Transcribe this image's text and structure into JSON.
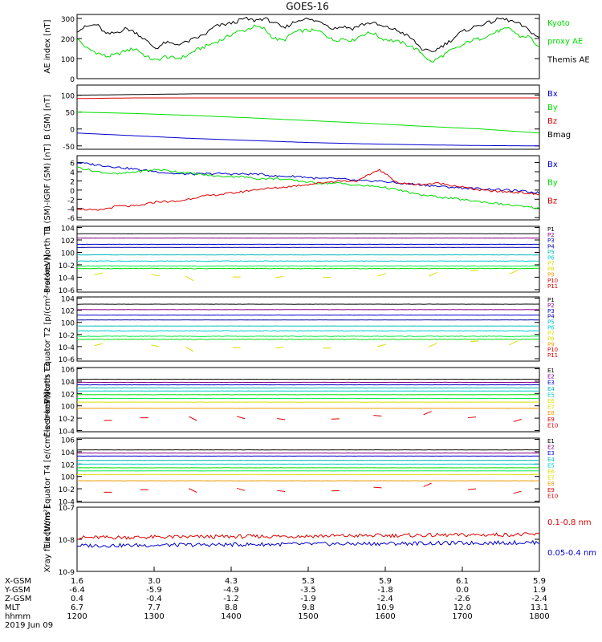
{
  "title": "GOES-16",
  "colors": {
    "black": "#000000",
    "blue": "#0000cc",
    "green": "#00dd00",
    "red": "#dd0000",
    "purple": "#880088",
    "cyan": "#00cccc",
    "yellow": "#dddd00",
    "orange": "#ee9900",
    "navy": "#0000aa",
    "teal": "#00bbbb",
    "lime": "#00ee44"
  },
  "chart_data": [
    {
      "type": "line",
      "id": "ae",
      "ylabel": "AE index [nT]",
      "ylim": [
        0,
        320
      ],
      "ticks": [
        {
          "v": 0,
          "t": "0"
        },
        {
          "v": 100,
          "t": "100"
        },
        {
          "v": 200,
          "t": "200"
        },
        {
          "v": 300,
          "t": "300"
        }
      ],
      "series": [
        {
          "name": "Kyoto proxy AE",
          "color": "green",
          "values": [
            200,
            150,
            130,
            110,
            120,
            140,
            150,
            110,
            90,
            110,
            100,
            110,
            140,
            160,
            180,
            200,
            230,
            240,
            260,
            250,
            200,
            190,
            230,
            240,
            240,
            230,
            190,
            200,
            190,
            220,
            230,
            200,
            190,
            180,
            160,
            130,
            80,
            110,
            140,
            160,
            190,
            200,
            220,
            240,
            250,
            210,
            210,
            150
          ]
        },
        {
          "name": "Themis AE",
          "color": "black",
          "values": [
            240,
            260,
            270,
            220,
            230,
            250,
            230,
            190,
            150,
            180,
            170,
            180,
            200,
            220,
            260,
            270,
            280,
            300,
            290,
            300,
            280,
            250,
            280,
            300,
            290,
            280,
            250,
            260,
            250,
            270,
            280,
            260,
            250,
            230,
            200,
            150,
            130,
            160,
            190,
            230,
            250,
            270,
            280,
            300,
            290,
            270,
            240,
            200
          ]
        }
      ],
      "legend": [
        {
          "text": "Kyoto",
          "color": "green"
        },
        {
          "text": "proxy AE",
          "color": "green"
        },
        {
          "text": "Themis AE",
          "color": "black"
        }
      ]
    },
    {
      "type": "line",
      "id": "bsm",
      "ylabel": "B (SM) [nT]",
      "ylim": [
        -60,
        130
      ],
      "ticks": [
        {
          "v": -50,
          "t": "-50"
        },
        {
          "v": 0,
          "t": "0"
        },
        {
          "v": 50,
          "t": "50"
        },
        {
          "v": 100,
          "t": "100"
        }
      ],
      "series": [
        {
          "name": "Bmag",
          "color": "black",
          "values": [
            100,
            102,
            104,
            104,
            104,
            104,
            104,
            104,
            104
          ]
        },
        {
          "name": "Bz",
          "color": "red",
          "values": [
            90,
            92,
            92,
            92,
            92,
            92,
            92,
            92,
            92
          ]
        },
        {
          "name": "By",
          "color": "green",
          "values": [
            50,
            46,
            40,
            33,
            25,
            17,
            8,
            0,
            -12
          ]
        },
        {
          "name": "Bx",
          "color": "blue",
          "values": [
            -12,
            -20,
            -28,
            -34,
            -40,
            -44,
            -47,
            -49,
            -50
          ]
        }
      ],
      "legend": [
        {
          "text": "Bx",
          "color": "blue"
        },
        {
          "text": "By",
          "color": "green"
        },
        {
          "text": "Bz",
          "color": "red"
        },
        {
          "text": "Bmag",
          "color": "black"
        }
      ]
    },
    {
      "type": "line",
      "id": "bres",
      "ylabel": "B (SM)-IGRF (SM) [nT]",
      "ylim": [
        -6.5,
        7.5
      ],
      "ticks": [
        {
          "v": -6,
          "t": "-6"
        },
        {
          "v": -4,
          "t": "-4"
        },
        {
          "v": -2,
          "t": "-2"
        },
        {
          "v": 0,
          "t": "0"
        },
        {
          "v": 2,
          "t": "2"
        },
        {
          "v": 4,
          "t": "4"
        },
        {
          "v": 6,
          "t": "6"
        }
      ],
      "series": [
        {
          "name": "Bx",
          "color": "blue",
          "values": [
            6,
            5.5,
            5,
            4.5,
            4,
            3.5,
            3.5,
            3.6,
            3.5,
            3.5,
            3,
            3,
            2.5,
            2.5,
            2,
            2,
            1.5,
            1.2,
            0.8,
            0.5,
            0.3,
            0.1,
            -0.2,
            -0.6
          ]
        },
        {
          "name": "By",
          "color": "green",
          "values": [
            5,
            4,
            3.5,
            4,
            4.5,
            4,
            3.5,
            3,
            3,
            2.5,
            2.5,
            2,
            1.5,
            1.5,
            1,
            0.8,
            0,
            -1,
            -1.5,
            -2,
            -2.5,
            -3,
            -3.5,
            -4
          ]
        },
        {
          "name": "Bz",
          "color": "red",
          "values": [
            -4,
            -4.5,
            -3.5,
            -3.5,
            -2.5,
            -2.5,
            -1.5,
            -1,
            -0.5,
            0.2,
            0.5,
            1,
            1.5,
            2,
            2,
            4.5,
            1.5,
            1.2,
            1.5,
            0.8,
            0,
            -0.3,
            -0.5,
            -1
          ]
        }
      ],
      "legend": [
        {
          "text": "Bx",
          "color": "blue"
        },
        {
          "text": "By",
          "color": "green"
        },
        {
          "text": "Bz",
          "color": "red"
        }
      ]
    },
    {
      "type": "line",
      "id": "pnorth",
      "log": true,
      "ylabel": "Protons North T1",
      "ylim": [
        -6.4,
        4.2
      ],
      "ticks": [
        {
          "v": -6,
          "t": "10-6"
        },
        {
          "v": -4,
          "t": "10-4"
        },
        {
          "v": -2,
          "t": "10-2"
        },
        {
          "v": 0,
          "t": "100"
        },
        {
          "v": 2,
          "t": "102"
        },
        {
          "v": 4,
          "t": "104"
        }
      ],
      "series": [
        {
          "name": "P1",
          "color": "black",
          "level": 3
        },
        {
          "name": "P2",
          "color": "purple",
          "level": 2.3
        },
        {
          "name": "P3",
          "color": "blue",
          "level": 1.3
        },
        {
          "name": "P4",
          "color": "navy",
          "level": 0.8
        },
        {
          "name": "P5",
          "color": "teal",
          "level": -0.4
        },
        {
          "name": "P6",
          "color": "cyan",
          "level": -1.4
        },
        {
          "name": "P7",
          "color": "lime",
          "level": -2.2
        },
        {
          "name": "P8",
          "color": "green",
          "level": -2.6
        },
        {
          "name": "P9",
          "color": "yellow",
          "level": -3.4,
          "sparse": true
        }
      ],
      "legend": [
        {
          "text": "P1",
          "color": "black"
        },
        {
          "text": "P2",
          "color": "purple"
        },
        {
          "text": "P3",
          "color": "blue"
        },
        {
          "text": "P4",
          "color": "navy"
        },
        {
          "text": "P5",
          "color": "teal"
        },
        {
          "text": "P6",
          "color": "cyan"
        },
        {
          "text": "P7",
          "color": "yellow"
        },
        {
          "text": "P8",
          "color": "yellow"
        },
        {
          "text": "P9",
          "color": "orange"
        },
        {
          "text": "P10",
          "color": "red"
        },
        {
          "text": "P11",
          "color": "red"
        }
      ]
    },
    {
      "type": "line",
      "id": "pequator",
      "log": true,
      "ylabel": "Protons Equator T2 [p/(cm²-s-sr-keV)]",
      "ylim": [
        -6.4,
        4.2
      ],
      "ticks": [
        {
          "v": -6,
          "t": "10-6"
        },
        {
          "v": -4,
          "t": "10-4"
        },
        {
          "v": -2,
          "t": "10-2"
        },
        {
          "v": 0,
          "t": "100"
        },
        {
          "v": 2,
          "t": "102"
        },
        {
          "v": 4,
          "t": "104"
        }
      ],
      "series": [
        {
          "name": "P1",
          "color": "black",
          "level": 3
        },
        {
          "name": "P2",
          "color": "purple",
          "level": 2.1
        },
        {
          "name": "P3",
          "color": "blue",
          "level": 1.2
        },
        {
          "name": "P4",
          "color": "navy",
          "level": 0.4
        },
        {
          "name": "P5",
          "color": "teal",
          "level": -0.6
        },
        {
          "name": "P6",
          "color": "cyan",
          "level": -1.4
        },
        {
          "name": "P7",
          "color": "lime",
          "level": -2.3
        },
        {
          "name": "P8",
          "color": "green",
          "level": -2.8
        },
        {
          "name": "P9",
          "color": "yellow",
          "level": -3.6,
          "sparse": true
        }
      ],
      "legend": [
        {
          "text": "P1",
          "color": "black"
        },
        {
          "text": "P2",
          "color": "purple"
        },
        {
          "text": "P3",
          "color": "blue"
        },
        {
          "text": "P4",
          "color": "navy"
        },
        {
          "text": "P5",
          "color": "teal"
        },
        {
          "text": "P6",
          "color": "cyan"
        },
        {
          "text": "P7",
          "color": "yellow"
        },
        {
          "text": "P8",
          "color": "yellow"
        },
        {
          "text": "P9",
          "color": "orange"
        },
        {
          "text": "P10",
          "color": "red"
        },
        {
          "text": "P11",
          "color": "red"
        }
      ]
    },
    {
      "type": "line",
      "id": "enorth",
      "log": true,
      "ylabel": "Electrons North T3",
      "ylim": [
        -4.2,
        6.2
      ],
      "ticks": [
        {
          "v": -4,
          "t": "10-4"
        },
        {
          "v": -2,
          "t": "10-2"
        },
        {
          "v": 0,
          "t": "100"
        },
        {
          "v": 2,
          "t": "102"
        },
        {
          "v": 4,
          "t": "104"
        },
        {
          "v": 6,
          "t": "106"
        }
      ],
      "series": [
        {
          "name": "E1",
          "color": "black",
          "level": 4.3
        },
        {
          "name": "E2",
          "color": "purple",
          "level": 3.8
        },
        {
          "name": "E3",
          "color": "blue",
          "level": 3.4
        },
        {
          "name": "E4",
          "color": "teal",
          "level": 2.9
        },
        {
          "name": "E5",
          "color": "cyan",
          "level": 2.4
        },
        {
          "name": "E6",
          "color": "green",
          "level": 1.8
        },
        {
          "name": "E7",
          "color": "lime",
          "level": 1.2
        },
        {
          "name": "E8",
          "color": "yellow",
          "level": 0.6
        },
        {
          "name": "E9",
          "color": "orange",
          "level": -0.4
        },
        {
          "name": "E10",
          "color": "red",
          "level": -2.0,
          "sparse": true
        }
      ],
      "legend": [
        {
          "text": "E1",
          "color": "black"
        },
        {
          "text": "E2",
          "color": "purple"
        },
        {
          "text": "E3",
          "color": "blue"
        },
        {
          "text": "E4",
          "color": "teal"
        },
        {
          "text": "E5",
          "color": "cyan"
        },
        {
          "text": "E6",
          "color": "yellow"
        },
        {
          "text": "E7",
          "color": "yellow"
        },
        {
          "text": "E8",
          "color": "orange"
        },
        {
          "text": "E9",
          "color": "red"
        },
        {
          "text": "E10",
          "color": "red"
        }
      ]
    },
    {
      "type": "line",
      "id": "eequator",
      "log": true,
      "ylabel": "Electrons Equator T4 [e/(cm²-s-sr-keV)]",
      "ylim": [
        -4.2,
        6.2
      ],
      "ticks": [
        {
          "v": -4,
          "t": "10-4"
        },
        {
          "v": -2,
          "t": "10-2"
        },
        {
          "v": 0,
          "t": "100"
        },
        {
          "v": 2,
          "t": "102"
        },
        {
          "v": 4,
          "t": "104"
        },
        {
          "v": 6,
          "t": "106"
        }
      ],
      "series": [
        {
          "name": "E1",
          "color": "black",
          "level": 4.3
        },
        {
          "name": "E2",
          "color": "purple",
          "level": 3.8
        },
        {
          "name": "E3",
          "color": "blue",
          "level": 3.3
        },
        {
          "name": "E4",
          "color": "teal",
          "level": 2.6
        },
        {
          "name": "E5",
          "color": "cyan",
          "level": 2.0
        },
        {
          "name": "E6",
          "color": "green",
          "level": 1.4
        },
        {
          "name": "E7",
          "color": "lime",
          "level": 0.9
        },
        {
          "name": "E8",
          "color": "yellow",
          "level": 0.3
        },
        {
          "name": "E9",
          "color": "orange",
          "level": -0.7
        },
        {
          "name": "E10",
          "color": "red",
          "level": -2.2,
          "sparse": true
        }
      ],
      "legend": [
        {
          "text": "E1",
          "color": "black"
        },
        {
          "text": "E2",
          "color": "purple"
        },
        {
          "text": "E3",
          "color": "blue"
        },
        {
          "text": "E4",
          "color": "teal"
        },
        {
          "text": "E5",
          "color": "cyan"
        },
        {
          "text": "E6",
          "color": "yellow"
        },
        {
          "text": "E7",
          "color": "yellow"
        },
        {
          "text": "E8",
          "color": "orange"
        },
        {
          "text": "E9",
          "color": "red"
        },
        {
          "text": "E10",
          "color": "red"
        }
      ]
    },
    {
      "type": "line",
      "id": "xray",
      "log": true,
      "ylabel": "Xray flux [W/m²]",
      "ylim": [
        -9,
        -7
      ],
      "ticks": [
        {
          "v": -9,
          "t": "10-9"
        },
        {
          "v": -8,
          "t": "10-8"
        },
        {
          "v": -7,
          "t": "10-7"
        }
      ],
      "series": [
        {
          "name": "0.1-0.8 nm",
          "color": "red",
          "level": -7.95
        },
        {
          "name": "0.05-0.4 nm",
          "color": "blue",
          "level": -8.2
        }
      ],
      "legend": [
        {
          "text": "0.1-0.8 nm",
          "color": "red"
        },
        {
          "text": "0.05-0.4 nm",
          "color": "blue"
        }
      ]
    }
  ],
  "x_axis": {
    "row_labels": [
      "X-GSM",
      "Y-GSM",
      "Z-GSM",
      "MLT",
      "hhmm"
    ],
    "date": "2019 Jun 09",
    "columns": [
      [
        "1.6",
        "-6.4",
        "0.4",
        "6.7",
        "1200"
      ],
      [
        "3.0",
        "-5.9",
        "-0.4",
        "7.7",
        "1300"
      ],
      [
        "4.3",
        "-4.9",
        "-1.2",
        "8.8",
        "1400"
      ],
      [
        "5.3",
        "-3.5",
        "-1.9",
        "9.8",
        "1500"
      ],
      [
        "5.9",
        "-1.8",
        "-2.4",
        "10.9",
        "1600"
      ],
      [
        "6.1",
        "0.0",
        "-2.6",
        "12.0",
        "1700"
      ],
      [
        "5.9",
        "1.9",
        "-2.4",
        "13.1",
        "1800"
      ]
    ]
  }
}
